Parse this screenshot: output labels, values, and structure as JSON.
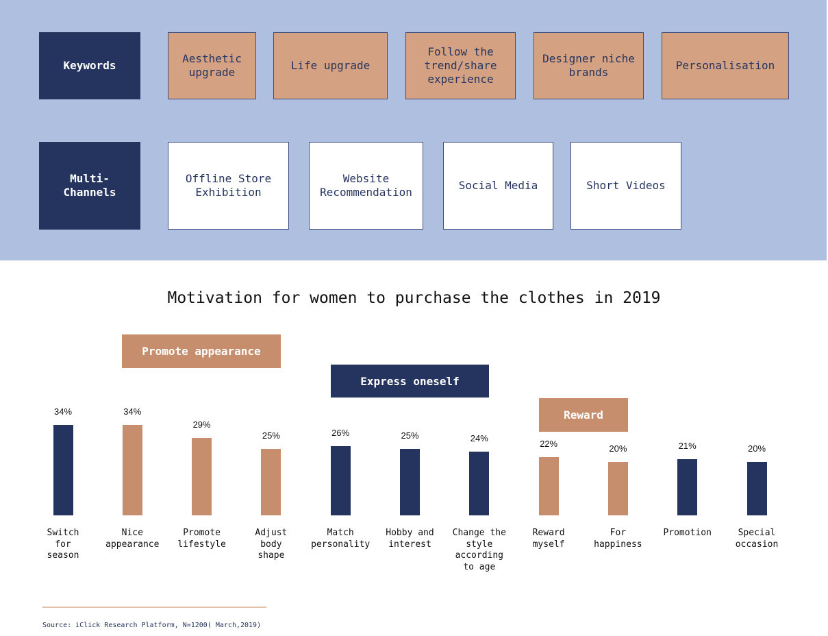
{
  "keywords": {
    "label": "Keywords",
    "items": [
      "Aesthetic upgrade",
      "Life upgrade",
      "Follow the trend/share experience",
      "Designer niche brands",
      "Personalisation"
    ]
  },
  "channels": {
    "label": "Multi-\nChannels",
    "items": [
      "Offline Store Exhibition",
      "Website Recommendation",
      "Social Media",
      "Short Videos"
    ]
  },
  "colors": {
    "navy": "#25345e",
    "tan": "#c78e6d",
    "keyword": "#d4a283",
    "panel": "#aebfe0"
  },
  "chart_data": {
    "type": "bar",
    "title": "Motivation for women to purchase the clothes in 2019",
    "categories": [
      "Switch\nfor\nseason",
      "Nice\nappearance",
      "Promote\nlifestyle",
      "Adjust\nbody\nshape",
      "Match\npersonality",
      "Hobby and\ninterest",
      "Change the\nstyle\naccording\nto age",
      "Reward\nmyself",
      "For\nhappiness",
      "Promotion",
      "Special\noccasion"
    ],
    "values": [
      34,
      34,
      29,
      25,
      26,
      25,
      24,
      22,
      20,
      21,
      20
    ],
    "value_labels": [
      "34%",
      "34%",
      "29%",
      "25%",
      "26%",
      "25%",
      "24%",
      "22%",
      "20%",
      "21%",
      "20%"
    ],
    "groups": [
      "navy",
      "tan",
      "tan",
      "tan",
      "navy",
      "navy",
      "navy",
      "tan",
      "tan",
      "navy",
      "navy"
    ],
    "legend": [
      {
        "label": "Promote appearance",
        "color": "tan"
      },
      {
        "label": "Express oneself",
        "color": "navy"
      },
      {
        "label": "Reward",
        "color": "tan"
      }
    ],
    "ylim": [
      0,
      34
    ]
  },
  "source": "Source: iClick Research Platform, N=1200( March,2019)"
}
